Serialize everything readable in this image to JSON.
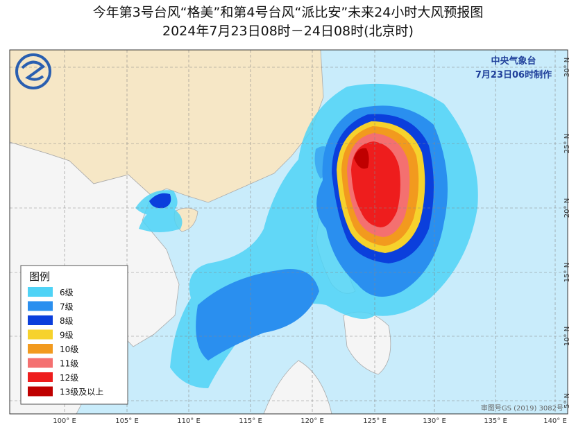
{
  "header": {
    "title": "今年第3号台风“格美”和第4号台风“派比安”未来24小时大风预报图",
    "subtitle": "2024年7月23日08时－24日08时(北京时)"
  },
  "agency": {
    "name": "中央气象台",
    "issued": "7月23日06时制作"
  },
  "legend": {
    "title": "图例",
    "items": [
      {
        "label": "6级",
        "color": "#4fd3f6"
      },
      {
        "label": "7级",
        "color": "#2a8fef"
      },
      {
        "label": "8级",
        "color": "#0b3fdc"
      },
      {
        "label": "9级",
        "color": "#f6d22c"
      },
      {
        "label": "10级",
        "color": "#f29a1e"
      },
      {
        "label": "11级",
        "color": "#f47070"
      },
      {
        "label": "12级",
        "color": "#ee1d1d"
      },
      {
        "label": "13级及以上",
        "color": "#bf0000"
      }
    ]
  },
  "axes": {
    "lon_labels": [
      "100° E",
      "105° E",
      "110° E",
      "115° E",
      "120° E",
      "125° E",
      "130° E",
      "135° E",
      "140° E"
    ],
    "lat_labels": [
      "30° N",
      "25° N",
      "20° N",
      "15° N",
      "10° N",
      "5° N"
    ]
  },
  "footer": "审图号GS (2019) 3082号"
}
